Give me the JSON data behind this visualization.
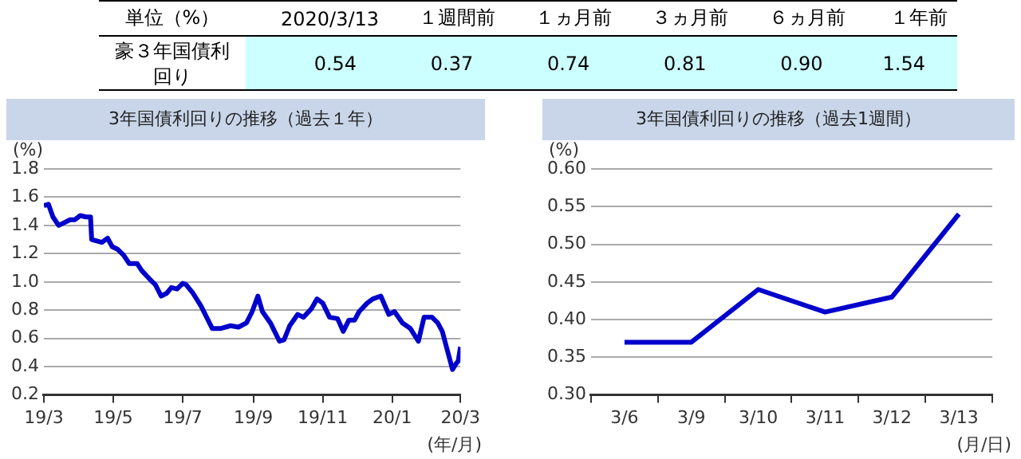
{
  "chart_data": [
    {
      "type": "other",
      "ylabel": "単位（%）",
      "categories": [
        "2020/3/13",
        "１週間前",
        "１ヵ月前",
        "３ヵ月前",
        "６ヵ月前",
        "１年前"
      ],
      "series": [
        {
          "name": "豪３年国債利回り",
          "color": "#ccffff",
          "values": [
            0.54,
            0.37,
            0.74,
            0.81,
            0.9,
            1.54
          ],
          "value_labels": [
            "0.54",
            "0.37",
            "0.74",
            "0.81",
            "0.90",
            "1.54"
          ]
        }
      ]
    },
    {
      "type": "line",
      "title": "3年国債利回りの推移（過去１年）",
      "ylabel": "(%)",
      "xlabel": "(年/月)",
      "x": [
        "2019-03-13",
        "2019-03-17",
        "2019-03-21",
        "2019-03-26",
        "2019-03-31",
        "2019-04-05",
        "2019-04-09",
        "2019-04-14",
        "2019-04-19",
        "2019-04-23",
        "2019-04-24",
        "2019-05-03",
        "2019-05-08",
        "2019-05-12",
        "2019-05-17",
        "2019-05-22",
        "2019-05-27",
        "2019-06-03",
        "2019-06-07",
        "2019-06-14",
        "2019-06-19",
        "2019-06-24",
        "2019-06-29",
        "2019-07-03",
        "2019-07-08",
        "2019-07-13",
        "2019-07-16",
        "2019-07-22",
        "2019-07-29",
        "2019-08-03",
        "2019-08-08",
        "2019-08-15",
        "2019-08-24",
        "2019-08-31",
        "2019-09-07",
        "2019-09-12",
        "2019-09-17",
        "2019-09-21",
        "2019-09-28",
        "2019-10-06",
        "2019-10-10",
        "2019-10-15",
        "2019-10-22",
        "2019-10-27",
        "2019-11-03",
        "2019-11-08",
        "2019-11-13",
        "2019-11-19",
        "2019-11-26",
        "2019-12-01",
        "2019-12-06",
        "2019-12-11",
        "2019-12-15",
        "2019-12-22",
        "2019-12-27",
        "2020-01-03",
        "2020-01-10",
        "2020-01-15",
        "2020-01-22",
        "2020-01-29",
        "2020-02-05",
        "2020-02-10",
        "2020-02-17",
        "2020-02-22",
        "2020-02-26",
        "2020-03-02",
        "2020-03-06",
        "2020-03-09",
        "2020-03-11",
        "2020-03-13"
      ],
      "series": [
        {
          "color": "#0000cc",
          "values": [
            1.54,
            1.55,
            1.46,
            1.4,
            1.42,
            1.44,
            1.44,
            1.47,
            1.46,
            1.46,
            1.3,
            1.28,
            1.31,
            1.25,
            1.23,
            1.19,
            1.13,
            1.13,
            1.08,
            1.02,
            0.98,
            0.9,
            0.92,
            0.96,
            0.95,
            0.99,
            0.98,
            0.92,
            0.83,
            0.75,
            0.67,
            0.67,
            0.69,
            0.68,
            0.71,
            0.79,
            0.9,
            0.79,
            0.71,
            0.58,
            0.59,
            0.69,
            0.77,
            0.75,
            0.81,
            0.88,
            0.85,
            0.75,
            0.74,
            0.65,
            0.73,
            0.73,
            0.79,
            0.85,
            0.88,
            0.9,
            0.77,
            0.79,
            0.71,
            0.67,
            0.58,
            0.75,
            0.75,
            0.71,
            0.65,
            0.5,
            0.38,
            0.42,
            0.44,
            0.54
          ]
        }
      ],
      "xlim": [
        "2019-03-13",
        "2020-03-13"
      ],
      "xticks": [
        {
          "value": "2019-03-13",
          "label": "19/3"
        },
        {
          "value": "2019-05-13",
          "label": "19/5"
        },
        {
          "value": "2019-07-13",
          "label": "19/7"
        },
        {
          "value": "2019-09-13",
          "label": "19/9"
        },
        {
          "value": "2019-11-13",
          "label": "19/11"
        },
        {
          "value": "2020-01-13",
          "label": "20/1"
        },
        {
          "value": "2020-03-13",
          "label": "20/3"
        }
      ],
      "ylim": [
        0.2,
        1.8
      ],
      "yticks": [
        {
          "value": 0.2,
          "label": "0.2"
        },
        {
          "value": 0.4,
          "label": "0.4"
        },
        {
          "value": 0.6,
          "label": "0.6"
        },
        {
          "value": 0.8,
          "label": "0.8"
        },
        {
          "value": 1.0,
          "label": "1.0"
        },
        {
          "value": 1.2,
          "label": "1.2"
        },
        {
          "value": 1.4,
          "label": "1.4"
        },
        {
          "value": 1.6,
          "label": "1.6"
        },
        {
          "value": 1.8,
          "label": "1.8"
        }
      ],
      "grid": "y",
      "marker": "none",
      "line_style": "solid"
    },
    {
      "type": "line",
      "title": "3年国債利回りの推移（過去1週間）",
      "ylabel": "(%)",
      "xlabel": "(月/日)",
      "categories": [
        "3/6",
        "3/9",
        "3/10",
        "3/11",
        "3/12",
        "3/13"
      ],
      "series": [
        {
          "color": "#0000cc",
          "values": [
            0.37,
            0.37,
            0.44,
            0.41,
            0.43,
            0.54
          ]
        }
      ],
      "ylim": [
        0.3,
        0.6
      ],
      "yticks": [
        {
          "value": 0.3,
          "label": "0.30"
        },
        {
          "value": 0.35,
          "label": "0.35"
        },
        {
          "value": 0.4,
          "label": "0.40"
        },
        {
          "value": 0.45,
          "label": "0.45"
        },
        {
          "value": 0.5,
          "label": "0.50"
        },
        {
          "value": 0.55,
          "label": "0.55"
        },
        {
          "value": 0.6,
          "label": "0.60"
        }
      ],
      "grid": "y",
      "marker": "none",
      "line_style": "solid"
    }
  ]
}
